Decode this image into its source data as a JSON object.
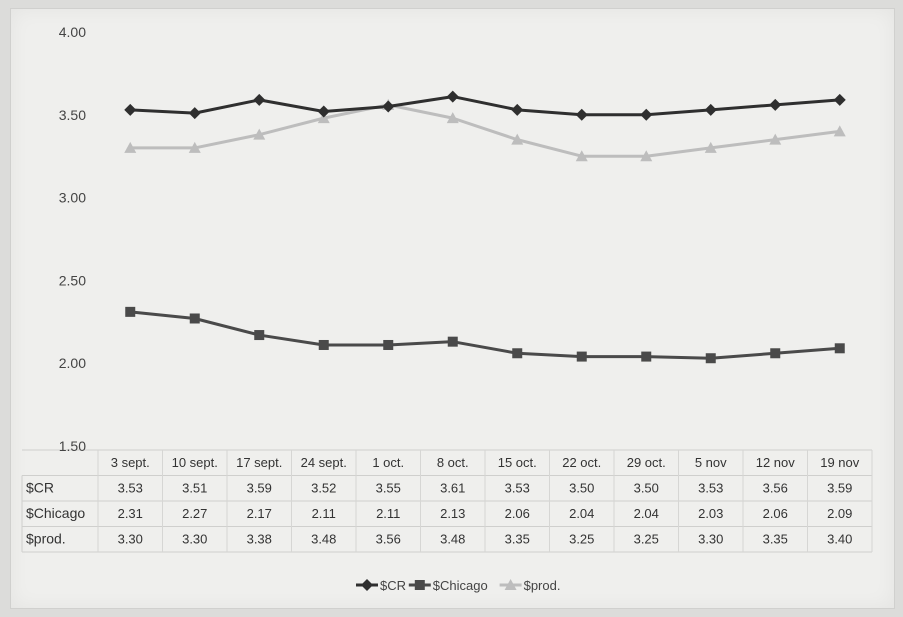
{
  "chart_data": {
    "type": "line",
    "categories": [
      "3 sept.",
      "10 sept.",
      "17 sept.",
      "24 sept.",
      "1 oct.",
      "8 oct.",
      "15 oct.",
      "22 oct.",
      "29 oct.",
      "5 nov",
      "12 nov",
      "19 nov"
    ],
    "series": [
      {
        "name": "$CR",
        "marker": "diamond",
        "color": "#2f2f2f",
        "values": [
          3.53,
          3.51,
          3.59,
          3.52,
          3.55,
          3.61,
          3.53,
          3.5,
          3.5,
          3.53,
          3.56,
          3.59
        ],
        "table_values": [
          "3.53",
          "3.51",
          "3.59",
          "3.52",
          "3.55",
          "3.61",
          "3.53",
          "3.50",
          "3.50",
          "3.53",
          "3.56",
          "3.59"
        ]
      },
      {
        "name": "$Chicago",
        "marker": "square",
        "color": "#4a4a4a",
        "values": [
          2.31,
          2.27,
          2.17,
          2.11,
          2.11,
          2.13,
          2.06,
          2.04,
          2.04,
          2.03,
          2.06,
          2.09
        ],
        "table_values": [
          "2.31",
          "2.27",
          "2.17",
          "2.11",
          "2.11",
          "2.13",
          "2.06",
          "2.04",
          "2.04",
          "2.03",
          "2.06",
          "2.09"
        ]
      },
      {
        "name": "$prod.",
        "marker": "triangle",
        "color": "#bdbdbd",
        "values": [
          3.3,
          3.3,
          3.38,
          3.48,
          3.56,
          3.48,
          3.35,
          3.25,
          3.25,
          3.3,
          3.35,
          3.4
        ],
        "table_values": [
          "3.30",
          "3.30",
          "3.38",
          "3.48",
          "3.56",
          "3.48",
          "3.35",
          "3.25",
          "3.25",
          "3.30",
          "3.35",
          "3.40"
        ]
      }
    ],
    "y_ticks": [
      "4.00",
      "3.50",
      "3.00",
      "2.50",
      "2.00",
      "1.50"
    ],
    "ylim": [
      1.5,
      4.0
    ],
    "title": "",
    "xlabel": "",
    "ylabel": "",
    "grid": false,
    "data_table": true,
    "legend_position": "bottom"
  }
}
